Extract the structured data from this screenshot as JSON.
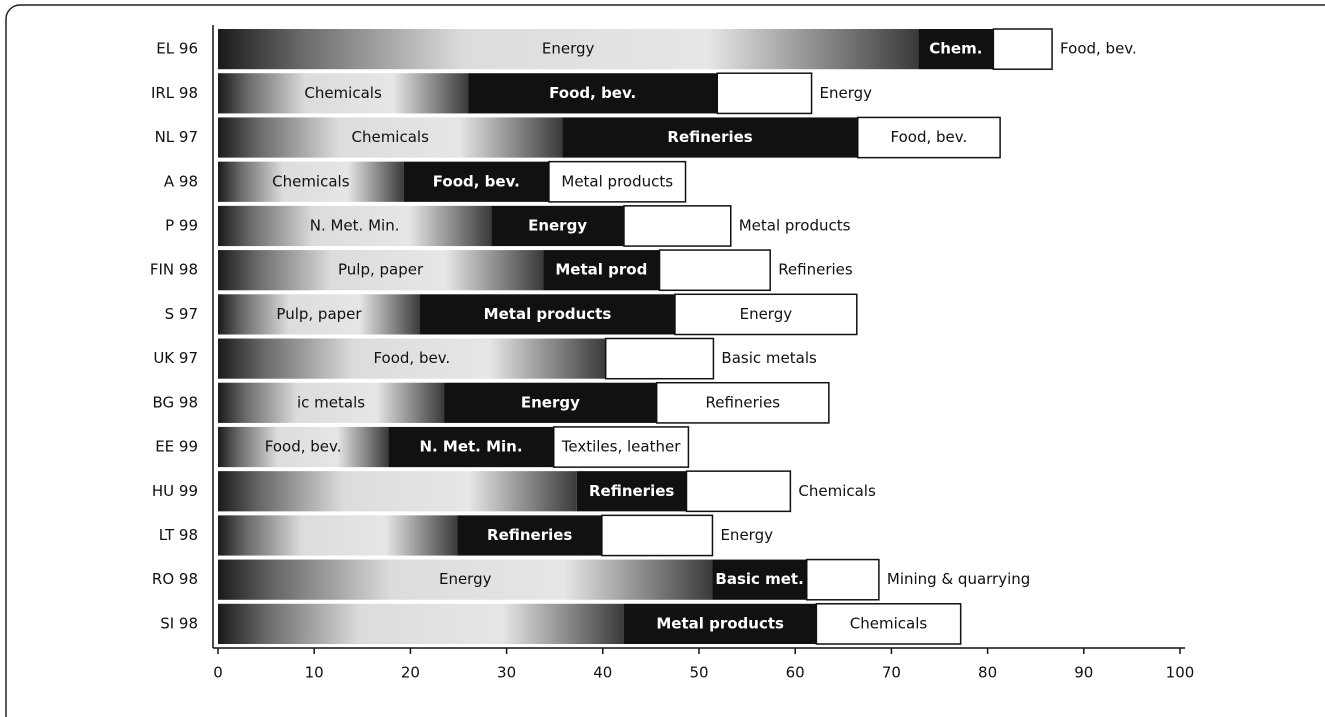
{
  "chart_data": {
    "type": "bar",
    "orientation": "horizontal",
    "stacked": true,
    "categories": [
      "EL 96",
      "IRL 98",
      "NL 97",
      "A 98",
      "P 99",
      "FIN 98",
      "S 97",
      "UK 97",
      "BG 98",
      "EE 99",
      "HU 99",
      "LT 98",
      "RO 98",
      "SI 98"
    ],
    "segments": [
      [
        {
          "label": "Energy",
          "value": 72.8
        },
        {
          "label": "Chem.",
          "value": 7.8
        },
        {
          "label": "Food, bev.",
          "value": 6.1
        }
      ],
      [
        {
          "label": "Chemicals",
          "value": 26.0
        },
        {
          "label": "Food, bev.",
          "value": 25.9
        },
        {
          "label": "Energy",
          "value": 9.8
        }
      ],
      [
        {
          "label": "Chemicals",
          "value": 35.8
        },
        {
          "label": "Refineries",
          "value": 30.7
        },
        {
          "label": "Food, bev.",
          "value": 14.8
        }
      ],
      [
        {
          "label": "Chemicals",
          "value": 19.3
        },
        {
          "label": "Food, bev.",
          "value": 15.1
        },
        {
          "label": "Metal products",
          "value": 14.2
        }
      ],
      [
        {
          "label": "N. Met. Min.",
          "value": 28.4
        },
        {
          "label": "Energy",
          "value": 13.8
        },
        {
          "label": "Metal products",
          "value": 11.1
        }
      ],
      [
        {
          "label": "Pulp, paper",
          "value": 33.8
        },
        {
          "label": "Metal prod",
          "value": 12.1
        },
        {
          "label": "Refineries",
          "value": 11.5
        }
      ],
      [
        {
          "label": "Pulp, paper",
          "value": 21.0
        },
        {
          "label": "Metal products",
          "value": 26.5
        },
        {
          "label": "Energy",
          "value": 18.9
        }
      ],
      [
        {
          "label": "Food, bev.",
          "value": 40.3
        },
        {
          "label": "Basic metals",
          "value": 11.2
        }
      ],
      [
        {
          "label": "ic metals",
          "value": 23.5
        },
        {
          "label": "Energy",
          "value": 22.1
        },
        {
          "label": "Refineries",
          "value": 17.9
        }
      ],
      [
        {
          "label": "Food, bev.",
          "value": 17.7
        },
        {
          "label": "N. Met. Min.",
          "value": 17.2
        },
        {
          "label": "Textiles, leather",
          "value": 14.0
        }
      ],
      [
        {
          "label": null,
          "value": 37.3
        },
        {
          "label": "Refineries",
          "value": 11.4
        },
        {
          "label": "Chemicals",
          "value": 10.8
        }
      ],
      [
        {
          "label": null,
          "value": 24.9
        },
        {
          "label": "Refineries",
          "value": 15.0
        },
        {
          "label": "Energy",
          "value": 11.5
        }
      ],
      [
        {
          "label": "Energy",
          "value": 51.4
        },
        {
          "label": "Basic met.",
          "value": 9.8
        },
        {
          "label": "Mining & quarrying",
          "value": 7.5
        }
      ],
      [
        {
          "label": null,
          "value": 42.2
        },
        {
          "label": "Metal products",
          "value": 20.0
        },
        {
          "label": "Chemicals",
          "value": 15.0
        }
      ]
    ],
    "xlim": [
      0,
      100
    ],
    "xticks": [
      0,
      10,
      20,
      30,
      40,
      50,
      60,
      70,
      80,
      90,
      100
    ]
  }
}
